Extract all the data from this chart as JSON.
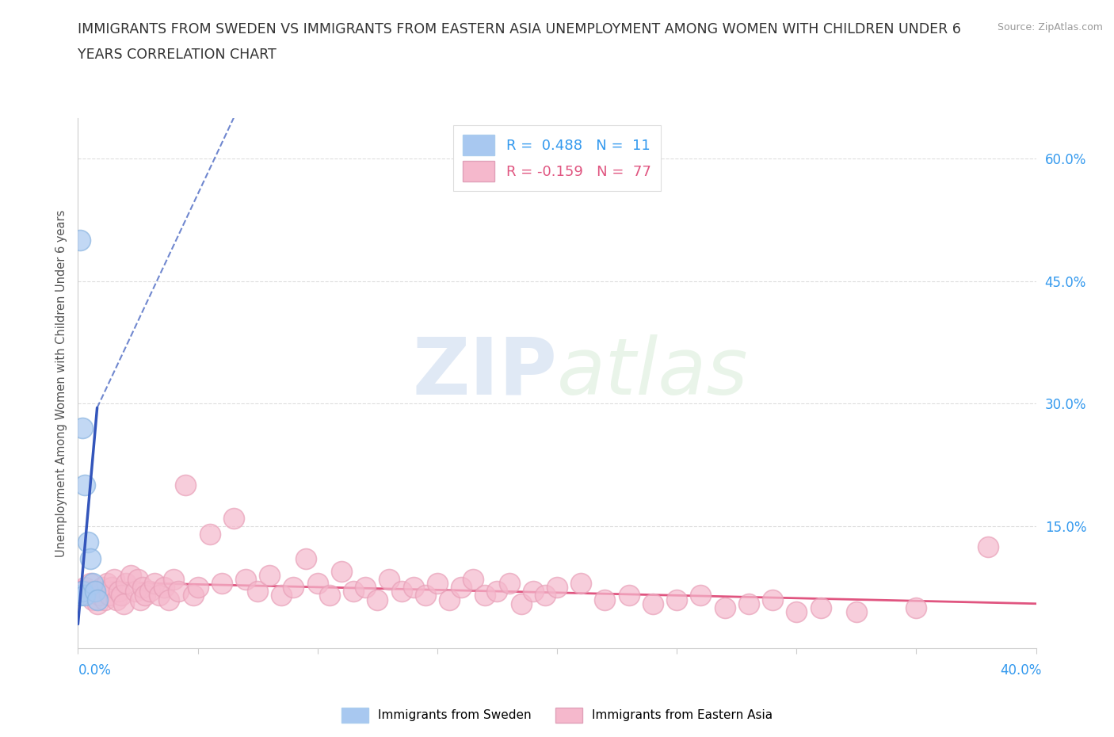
{
  "title_line1": "IMMIGRANTS FROM SWEDEN VS IMMIGRANTS FROM EASTERN ASIA UNEMPLOYMENT AMONG WOMEN WITH CHILDREN UNDER 6",
  "title_line2": "YEARS CORRELATION CHART",
  "source": "Source: ZipAtlas.com",
  "ylabel": "Unemployment Among Women with Children Under 6 years",
  "watermark": "ZIPatlas",
  "sweden_R": 0.488,
  "sweden_N": 11,
  "eastern_asia_R": -0.159,
  "eastern_asia_N": 77,
  "sweden_color": "#a8c8f0",
  "sweden_edge_color": "#8ab4e0",
  "sweden_line_color": "#3355bb",
  "eastern_asia_color": "#f5b8cc",
  "eastern_asia_edge_color": "#e8a0b8",
  "eastern_asia_line_color": "#e05580",
  "xlim": [
    0.0,
    0.4
  ],
  "ylim": [
    0.0,
    0.65
  ],
  "ytick_vals": [
    0.15,
    0.3,
    0.45,
    0.6
  ],
  "ytick_labels": [
    "15.0%",
    "30.0%",
    "45.0%",
    "60.0%"
  ],
  "xtick_vals": [
    0.0,
    0.05,
    0.1,
    0.15,
    0.2,
    0.25,
    0.3,
    0.35,
    0.4
  ],
  "sweden_x": [
    0.001,
    0.001,
    0.002,
    0.002,
    0.003,
    0.003,
    0.004,
    0.005,
    0.006,
    0.007,
    0.008
  ],
  "sweden_y": [
    0.5,
    0.065,
    0.27,
    0.07,
    0.2,
    0.065,
    0.13,
    0.11,
    0.08,
    0.07,
    0.06
  ],
  "ea_x": [
    0.003,
    0.005,
    0.006,
    0.007,
    0.008,
    0.009,
    0.01,
    0.011,
    0.012,
    0.013,
    0.014,
    0.015,
    0.016,
    0.017,
    0.018,
    0.019,
    0.02,
    0.022,
    0.024,
    0.025,
    0.026,
    0.027,
    0.028,
    0.03,
    0.032,
    0.034,
    0.036,
    0.038,
    0.04,
    0.042,
    0.045,
    0.048,
    0.05,
    0.055,
    0.06,
    0.065,
    0.07,
    0.075,
    0.08,
    0.085,
    0.09,
    0.095,
    0.1,
    0.105,
    0.11,
    0.115,
    0.12,
    0.125,
    0.13,
    0.135,
    0.14,
    0.145,
    0.15,
    0.155,
    0.16,
    0.165,
    0.17,
    0.175,
    0.18,
    0.185,
    0.19,
    0.195,
    0.2,
    0.21,
    0.22,
    0.23,
    0.24,
    0.25,
    0.26,
    0.27,
    0.28,
    0.29,
    0.3,
    0.31,
    0.325,
    0.35,
    0.38
  ],
  "ea_y": [
    0.075,
    0.08,
    0.06,
    0.07,
    0.055,
    0.065,
    0.075,
    0.06,
    0.08,
    0.065,
    0.075,
    0.085,
    0.06,
    0.07,
    0.065,
    0.055,
    0.08,
    0.09,
    0.07,
    0.085,
    0.06,
    0.075,
    0.065,
    0.07,
    0.08,
    0.065,
    0.075,
    0.06,
    0.085,
    0.07,
    0.2,
    0.065,
    0.075,
    0.14,
    0.08,
    0.16,
    0.085,
    0.07,
    0.09,
    0.065,
    0.075,
    0.11,
    0.08,
    0.065,
    0.095,
    0.07,
    0.075,
    0.06,
    0.085,
    0.07,
    0.075,
    0.065,
    0.08,
    0.06,
    0.075,
    0.085,
    0.065,
    0.07,
    0.08,
    0.055,
    0.07,
    0.065,
    0.075,
    0.08,
    0.06,
    0.065,
    0.055,
    0.06,
    0.065,
    0.05,
    0.055,
    0.06,
    0.045,
    0.05,
    0.045,
    0.05,
    0.125
  ],
  "sweden_trendline_x0": 0.0,
  "sweden_trendline_x1": 0.008,
  "sweden_trendline_y0": 0.03,
  "sweden_trendline_y1": 0.295,
  "sweden_trendline_dash_x0": 0.008,
  "sweden_trendline_dash_x1": 0.065,
  "sweden_trendline_dash_y0": 0.295,
  "sweden_trendline_dash_y1": 0.65,
  "ea_trendline_x0": 0.0,
  "ea_trendline_x1": 0.4,
  "ea_trendline_y0": 0.082,
  "ea_trendline_y1": 0.055
}
